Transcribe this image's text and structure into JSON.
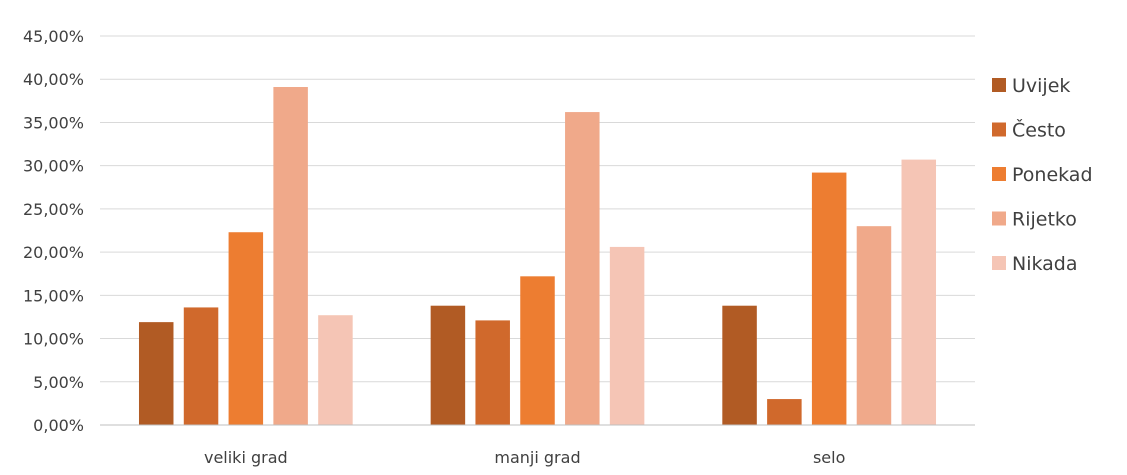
{
  "chart_data": {
    "type": "bar",
    "categories": [
      "veliki grad",
      "manji grad",
      "selo"
    ],
    "series": [
      {
        "name": "Uvijek",
        "color": "#b15b24",
        "values": [
          11.9,
          13.8,
          13.8
        ]
      },
      {
        "name": "Često",
        "color": "#d0692c",
        "values": [
          13.6,
          12.1,
          3.0
        ]
      },
      {
        "name": "Ponekad",
        "color": "#ed7d31",
        "values": [
          22.3,
          17.2,
          29.2
        ]
      },
      {
        "name": "Rijetko",
        "color": "#f0a98a",
        "values": [
          39.1,
          36.2,
          23.0
        ]
      },
      {
        "name": "Nikada",
        "color": "#f5c5b5",
        "values": [
          12.7,
          20.6,
          30.7
        ]
      }
    ],
    "y_ticks": [
      "0,00%",
      "5,00%",
      "10,00%",
      "15,00%",
      "20,00%",
      "25,00%",
      "30,00%",
      "35,00%",
      "40,00%",
      "45,00%"
    ],
    "ylim": [
      0,
      45
    ],
    "grid": true,
    "legend_position": "right",
    "title": "",
    "xlabel": "",
    "ylabel": ""
  }
}
